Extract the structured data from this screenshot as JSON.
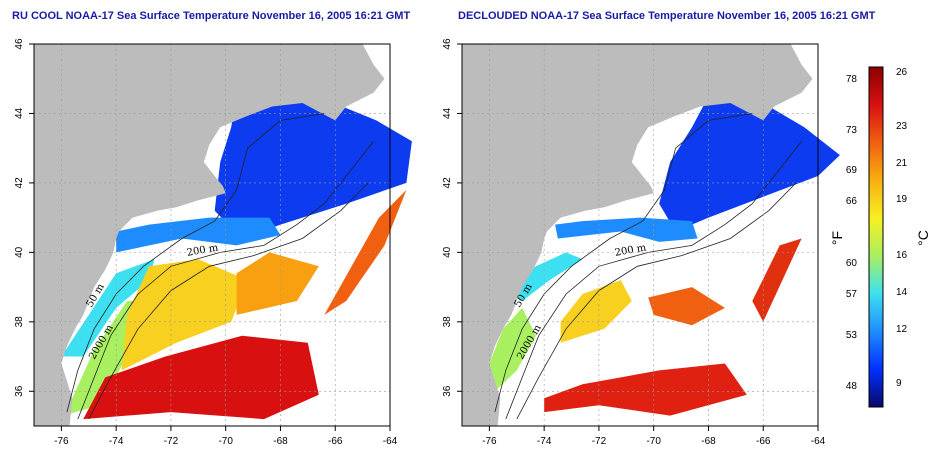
{
  "panels": [
    {
      "id": "left",
      "title": "RU COOL NOAA-17 Sea Surface Temperature November 16, 2005 16:21 GMT",
      "x_ticks": [
        "-76",
        "-74",
        "-72",
        "-70",
        "-68",
        "-66",
        "-64"
      ],
      "y_ticks": [
        "36",
        "38",
        "40",
        "42",
        "44",
        "46"
      ],
      "isobath_labels": [
        "200 m",
        "2000 m",
        "50 m"
      ]
    },
    {
      "id": "right",
      "title": "DECLOUDED NOAA-17 Sea Surface Temperature November 16, 2005 16:21 GMT",
      "x_ticks": [
        "-76",
        "-74",
        "-72",
        "-70",
        "-68",
        "-66",
        "-64"
      ],
      "y_ticks": [
        "36",
        "38",
        "40",
        "42",
        "44",
        "46"
      ],
      "isobath_labels": [
        "200 m",
        "2000 m",
        "50 m"
      ]
    }
  ],
  "colorbar": {
    "fahrenheit_ticks": [
      "78",
      "73",
      "69",
      "66",
      "60",
      "57",
      "53",
      "48"
    ],
    "celsius_ticks": [
      "26",
      "23",
      "21",
      "19",
      "16",
      "14",
      "12",
      "9"
    ],
    "fahrenheit_label": "°F",
    "celsius_label": "°C",
    "colors": [
      "#08086b",
      "#0030ff",
      "#1e8cff",
      "#3ce0f0",
      "#a8f060",
      "#f8f020",
      "#f8b010",
      "#f06010",
      "#d81010",
      "#8b0000"
    ]
  }
}
